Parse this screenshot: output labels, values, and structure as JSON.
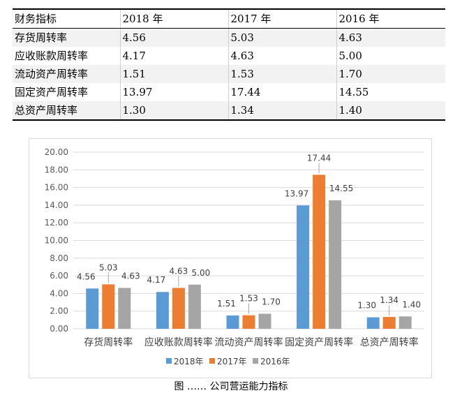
{
  "table": {
    "header": [
      "财务指标",
      "2018 年",
      "2017 年",
      "2016 年"
    ],
    "rows": [
      [
        "存货周转率",
        "4.56",
        "5.03",
        "4.63"
      ],
      [
        "应收账款周转率",
        "4.17",
        "4.63",
        "5.00"
      ],
      [
        "流动资产周转率",
        "1.51",
        "1.53",
        "1.70"
      ],
      [
        "固定资产周转率",
        "13.97",
        "17.44",
        "14.55"
      ],
      [
        "总资产周转率",
        "1.30",
        "1.34",
        "1.40"
      ]
    ]
  },
  "chart_data": {
    "type": "bar",
    "categories": [
      "存货周转率",
      "应收账款周转率",
      "流动资产周转率",
      "固定资产周转率",
      "总资产周转率"
    ],
    "series": [
      {
        "name": "2018年",
        "color": "#5b9bd5",
        "values": [
          4.56,
          4.17,
          1.51,
          13.97,
          1.3
        ],
        "labels": [
          "4.56",
          "4.17",
          "1.51",
          "13.97",
          "1.30"
        ]
      },
      {
        "name": "2017年",
        "color": "#ed7d31",
        "values": [
          5.03,
          4.63,
          1.53,
          17.44,
          1.34
        ],
        "labels": [
          "5.03",
          "4.63",
          "1.53",
          "17.44",
          "1.34"
        ]
      },
      {
        "name": "2016年",
        "color": "#a5a5a5",
        "values": [
          4.63,
          5.0,
          1.7,
          14.55,
          1.4
        ],
        "labels": [
          "4.63",
          "5.00",
          "1.70",
          "14.55",
          "1.40"
        ]
      }
    ],
    "ylim": [
      0,
      20
    ],
    "yticks": [
      "0.00",
      "2.00",
      "4.00",
      "6.00",
      "8.00",
      "10.00",
      "12.00",
      "14.00",
      "16.00",
      "18.00",
      "20.00"
    ],
    "grid": true,
    "legend": "bottom",
    "title": "",
    "xlabel": "",
    "ylabel": ""
  },
  "caption": "图   ……   公司营运能力指标"
}
